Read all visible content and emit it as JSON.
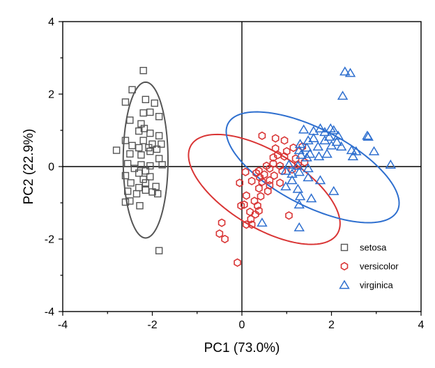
{
  "chart_data": {
    "type": "scatter",
    "xlabel": "PC1 (73.0%)",
    "ylabel": "PC2 (22.9%)",
    "xlim": [
      -4,
      4
    ],
    "ylim": [
      -4,
      4
    ],
    "xticks": [
      -4,
      -2,
      0,
      2,
      4
    ],
    "yticks": [
      -4,
      -2,
      0,
      2,
      4
    ],
    "xtick_labels": [
      "-4",
      "-2",
      "0",
      "2",
      "4"
    ],
    "ytick_labels": [
      "-4",
      "-2",
      "0",
      "2",
      "4"
    ],
    "reference_lines": {
      "x": 0,
      "y": 0
    },
    "legend_position": "bottom-right",
    "series": [
      {
        "name": "setosa",
        "marker": "square",
        "color": "#555555",
        "ellipse": {
          "center": [
            -2.15,
            0.18
          ],
          "rx": 0.5,
          "ry": 2.15,
          "angle_deg": 0
        },
        "points": [
          [
            -2.2,
            2.65
          ],
          [
            -2.45,
            2.12
          ],
          [
            -2.6,
            1.78
          ],
          [
            -2.15,
            1.85
          ],
          [
            -1.95,
            1.75
          ],
          [
            -2.2,
            1.48
          ],
          [
            -2.05,
            1.5
          ],
          [
            -1.85,
            1.38
          ],
          [
            -2.5,
            1.28
          ],
          [
            -2.25,
            1.18
          ],
          [
            -2.18,
            1.05
          ],
          [
            -2.3,
            0.98
          ],
          [
            -2.05,
            0.92
          ],
          [
            -1.85,
            0.85
          ],
          [
            -2.6,
            0.72
          ],
          [
            -2.2,
            0.72
          ],
          [
            -2.0,
            0.62
          ],
          [
            -1.8,
            0.62
          ],
          [
            -2.45,
            0.58
          ],
          [
            -2.3,
            0.52
          ],
          [
            -2.08,
            0.52
          ],
          [
            -1.9,
            0.48
          ],
          [
            -2.8,
            0.45
          ],
          [
            -2.05,
            0.42
          ],
          [
            -2.5,
            0.35
          ],
          [
            -2.25,
            0.32
          ],
          [
            -1.85,
            0.22
          ],
          [
            -2.55,
            0.08
          ],
          [
            -2.25,
            0.05
          ],
          [
            -2.05,
            0.02
          ],
          [
            -1.78,
            0.05
          ],
          [
            -2.4,
            -0.05
          ],
          [
            -2.15,
            -0.12
          ],
          [
            -2.6,
            -0.25
          ],
          [
            -2.3,
            -0.18
          ],
          [
            -2.05,
            -0.28
          ],
          [
            -2.48,
            -0.45
          ],
          [
            -2.15,
            -0.45
          ],
          [
            -1.92,
            -0.55
          ],
          [
            -2.3,
            -0.58
          ],
          [
            -2.15,
            -0.65
          ],
          [
            -2.55,
            -0.68
          ],
          [
            -2.0,
            -0.7
          ],
          [
            -2.35,
            -0.75
          ],
          [
            -1.88,
            -0.75
          ],
          [
            -2.5,
            -0.95
          ],
          [
            -2.6,
            -0.98
          ],
          [
            -2.28,
            -1.08
          ],
          [
            -1.85,
            -2.32
          ],
          [
            -2.2,
            -0.35
          ]
        ]
      },
      {
        "name": "versicolor",
        "marker": "hexagon",
        "color": "#d93535",
        "ellipse": {
          "center": [
            0.5,
            -0.63
          ],
          "rx": 2.05,
          "ry": 0.98,
          "angle_deg": -40
        },
        "points": [
          [
            0.45,
            0.85
          ],
          [
            0.75,
            0.78
          ],
          [
            0.95,
            0.72
          ],
          [
            1.15,
            0.52
          ],
          [
            1.35,
            0.55
          ],
          [
            0.75,
            0.5
          ],
          [
            1.0,
            0.42
          ],
          [
            0.8,
            0.32
          ],
          [
            0.95,
            0.28
          ],
          [
            1.2,
            0.22
          ],
          [
            0.7,
            0.25
          ],
          [
            1.4,
            0.12
          ],
          [
            0.7,
            0.08
          ],
          [
            0.55,
            0.02
          ],
          [
            0.85,
            0.02
          ],
          [
            1.25,
            0.05
          ],
          [
            0.62,
            -0.05
          ],
          [
            0.9,
            -0.12
          ],
          [
            0.08,
            -0.15
          ],
          [
            0.32,
            -0.18
          ],
          [
            0.5,
            -0.22
          ],
          [
            0.72,
            -0.25
          ],
          [
            0.4,
            -0.3
          ],
          [
            0.62,
            -0.38
          ],
          [
            0.22,
            -0.4
          ],
          [
            0.45,
            -0.42
          ],
          [
            -0.05,
            -0.45
          ],
          [
            0.85,
            -0.45
          ],
          [
            0.62,
            -0.52
          ],
          [
            0.38,
            -0.6
          ],
          [
            0.1,
            -0.8
          ],
          [
            0.42,
            -0.82
          ],
          [
            0.28,
            -0.95
          ],
          [
            0.05,
            -1.05
          ],
          [
            0.35,
            -1.08
          ],
          [
            -0.02,
            -1.08
          ],
          [
            0.38,
            -1.22
          ],
          [
            0.18,
            -1.25
          ],
          [
            0.3,
            -1.32
          ],
          [
            1.05,
            -1.35
          ],
          [
            0.2,
            -1.45
          ],
          [
            -0.45,
            -1.55
          ],
          [
            0.1,
            -1.6
          ],
          [
            0.22,
            -1.6
          ],
          [
            -0.5,
            -1.85
          ],
          [
            -0.38,
            -2.0
          ],
          [
            -0.1,
            -2.65
          ],
          [
            0.38,
            -0.12
          ],
          [
            1.12,
            -0.08
          ],
          [
            0.58,
            -0.68
          ]
        ]
      },
      {
        "name": "virginica",
        "marker": "triangle",
        "color": "#2e6fcf",
        "ellipse": {
          "center": [
            1.58,
            -0.02
          ],
          "rx": 2.25,
          "ry": 1.0,
          "angle_deg": -35
        },
        "points": [
          [
            2.3,
            2.62
          ],
          [
            2.42,
            2.58
          ],
          [
            2.25,
            1.95
          ],
          [
            1.75,
            1.05
          ],
          [
            1.85,
            0.95
          ],
          [
            1.98,
            1.05
          ],
          [
            2.05,
            1.0
          ],
          [
            1.38,
            1.02
          ],
          [
            1.6,
            0.98
          ],
          [
            1.95,
            0.82
          ],
          [
            2.15,
            0.85
          ],
          [
            2.8,
            0.85
          ],
          [
            2.82,
            0.82
          ],
          [
            1.6,
            0.78
          ],
          [
            1.85,
            0.72
          ],
          [
            1.48,
            0.72
          ],
          [
            2.12,
            0.68
          ],
          [
            1.3,
            0.62
          ],
          [
            1.45,
            0.52
          ],
          [
            1.7,
            0.55
          ],
          [
            2.0,
            0.58
          ],
          [
            2.22,
            0.55
          ],
          [
            2.45,
            0.45
          ],
          [
            2.55,
            0.42
          ],
          [
            1.28,
            0.45
          ],
          [
            1.52,
            0.35
          ],
          [
            1.9,
            0.35
          ],
          [
            1.32,
            0.32
          ],
          [
            2.95,
            0.42
          ],
          [
            1.72,
            0.28
          ],
          [
            1.45,
            0.25
          ],
          [
            2.48,
            0.28
          ],
          [
            3.32,
            0.05
          ],
          [
            1.05,
            0.05
          ],
          [
            1.25,
            0.02
          ],
          [
            1.48,
            -0.05
          ],
          [
            0.98,
            -0.12
          ],
          [
            1.28,
            -0.15
          ],
          [
            1.12,
            -0.2
          ],
          [
            1.48,
            -0.3
          ],
          [
            1.12,
            -0.38
          ],
          [
            1.75,
            -0.38
          ],
          [
            0.98,
            -0.55
          ],
          [
            1.25,
            -0.62
          ],
          [
            2.05,
            -0.68
          ],
          [
            1.3,
            -0.82
          ],
          [
            1.55,
            -0.88
          ],
          [
            1.28,
            -1.05
          ],
          [
            0.45,
            -1.55
          ],
          [
            1.28,
            -1.68
          ]
        ]
      }
    ]
  }
}
